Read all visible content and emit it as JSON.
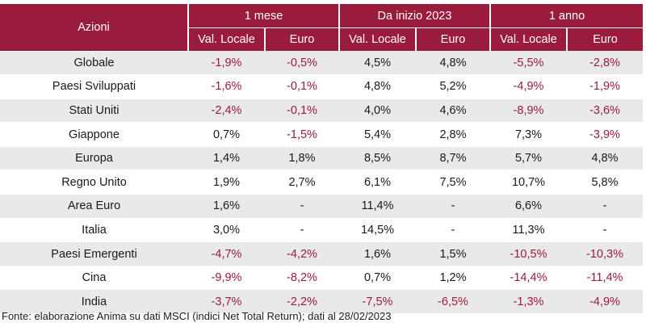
{
  "header": {
    "row_label": "Azioni",
    "groups": [
      "1 mese",
      "Da inizio 2023",
      "1 anno"
    ],
    "subcolumns": [
      "Val. Locale",
      "Euro",
      "Val. Locale",
      "Euro",
      "Val. Locale",
      "Euro"
    ]
  },
  "rows": [
    {
      "label": "Globale",
      "values": [
        "-1,9%",
        "-0,5%",
        "4,5%",
        "4,8%",
        "-5,5%",
        "-2,8%"
      ]
    },
    {
      "label": "Paesi Sviluppati",
      "values": [
        "-1,6%",
        "-0,1%",
        "4,8%",
        "5,2%",
        "-4,9%",
        "-1,9%"
      ]
    },
    {
      "label": "Stati Uniti",
      "values": [
        "-2,4%",
        "-0,1%",
        "4,0%",
        "4,6%",
        "-8,9%",
        "-3,6%"
      ]
    },
    {
      "label": "Giappone",
      "values": [
        "0,7%",
        "-1,5%",
        "5,4%",
        "2,8%",
        "7,3%",
        "-3,9%"
      ]
    },
    {
      "label": "Europa",
      "values": [
        "1,4%",
        "1,8%",
        "8,5%",
        "8,7%",
        "5,7%",
        "4,8%"
      ]
    },
    {
      "label": "Regno Unito",
      "values": [
        "1,9%",
        "2,7%",
        "6,1%",
        "7,5%",
        "10,7%",
        "5,8%"
      ]
    },
    {
      "label": "Area Euro",
      "values": [
        "1,6%",
        "-",
        "11,4%",
        "-",
        "6,6%",
        "-"
      ]
    },
    {
      "label": "Italia",
      "values": [
        "3,0%",
        "-",
        "14,5%",
        "-",
        "11,3%",
        "-"
      ]
    },
    {
      "label": "Paesi Emergenti",
      "values": [
        "-4,7%",
        "-4,2%",
        "1,6%",
        "1,5%",
        "-10,5%",
        "-10,3%"
      ]
    },
    {
      "label": "Cina",
      "values": [
        "-9,9%",
        "-8,2%",
        "0,7%",
        "1,2%",
        "-14,4%",
        "-11,4%"
      ]
    },
    {
      "label": "India",
      "values": [
        "-3,7%",
        "-2,2%",
        "-7,5%",
        "-6,5%",
        "-1,3%",
        "-4,9%"
      ]
    }
  ],
  "footer": {
    "source": "Fonte: elaborazione Anima su dati MSCI (indici Net Total Return); dati al 28/02/2023"
  },
  "colors": {
    "header_bg": "#9b1b3c",
    "negative_text": "#9b1b3c",
    "stripe": "#e9e9e9"
  }
}
